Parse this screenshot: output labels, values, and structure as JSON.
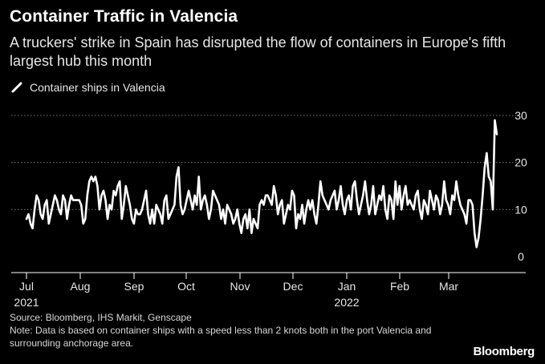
{
  "title": "Container Traffic in Valencia",
  "subtitle": "A truckers' strike in Spain has disrupted the flow of containers in Europe's fifth largest hub this month",
  "legend_label": "Container ships in Valencia",
  "source_line": "Source: Bloomberg, IHS Markit, Genscape",
  "note_line": "Note: Data is based on container ships with a speed less than 2 knots both in the port Valencia and surrounding anchorage area.",
  "brand": "Bloomberg",
  "colors": {
    "background": "#000000",
    "line": "#ffffff",
    "grid": "#777777"
  },
  "chart_data": {
    "type": "line",
    "title": "Container Traffic in Valencia",
    "xlabel": "",
    "ylabel": "",
    "ylim": [
      0,
      30
    ],
    "yticks": [
      0,
      10,
      20,
      30
    ],
    "grid": true,
    "legend_position": "top-left",
    "x_start": "2021-07-01",
    "x_end": "2022-03-31",
    "x_tick_labels": [
      "Jul",
      "Aug",
      "Sep",
      "Oct",
      "Nov",
      "Dec",
      "Jan",
      "Feb",
      "Mar"
    ],
    "x_year_labels": [
      {
        "under": "Jul",
        "year": "2021"
      },
      {
        "under": "Jan",
        "year": "2022"
      }
    ],
    "series": [
      {
        "name": "Container ships in Valencia",
        "values": [
          8,
          9,
          7,
          6,
          10,
          13,
          12,
          9,
          8,
          11,
          12,
          7,
          9,
          11,
          13,
          12,
          10,
          9,
          13,
          12,
          8,
          11,
          13,
          12,
          12,
          12,
          12,
          11,
          7,
          8,
          13,
          16,
          17,
          16,
          17,
          15,
          10,
          13,
          14,
          12,
          8,
          11,
          10,
          14,
          13,
          15,
          16,
          8,
          11,
          15,
          13,
          11,
          8,
          7,
          10,
          9,
          9,
          10,
          12,
          14,
          9,
          7,
          10,
          7,
          11,
          10,
          9,
          7,
          12,
          13,
          8,
          9,
          10,
          11,
          17,
          19,
          11,
          9,
          10,
          12,
          14,
          12,
          10,
          13,
          11,
          17,
          10,
          12,
          13,
          11,
          8,
          10,
          14,
          13,
          12,
          11,
          8,
          10,
          7,
          11,
          10,
          9,
          7,
          8,
          10,
          7,
          5,
          8,
          9,
          6,
          10,
          5,
          8,
          7,
          6,
          11,
          12,
          11,
          13,
          13,
          12,
          11,
          15,
          13,
          9,
          11,
          12,
          7,
          9,
          11,
          10,
          14,
          13,
          6,
          9,
          8,
          11,
          7,
          10,
          12,
          10,
          12,
          9,
          7,
          11,
          16,
          13,
          12,
          11,
          10,
          12,
          13,
          14,
          10,
          12,
          15,
          11,
          9,
          12,
          13,
          10,
          15,
          16,
          12,
          9,
          11,
          13,
          16,
          12,
          9,
          11,
          15,
          9,
          11,
          13,
          12,
          15,
          10,
          8,
          13,
          12,
          8,
          16,
          11,
          15,
          10,
          13,
          15,
          11,
          12,
          11,
          10,
          13,
          14,
          10,
          8,
          12,
          11,
          9,
          14,
          12,
          10,
          13,
          12,
          9,
          11,
          16,
          12,
          11,
          9,
          13,
          12,
          16,
          13,
          11,
          10,
          9,
          7,
          12,
          12,
          11,
          5,
          2,
          4,
          8,
          13,
          19,
          22,
          17,
          16,
          10,
          29,
          26
        ]
      }
    ]
  }
}
